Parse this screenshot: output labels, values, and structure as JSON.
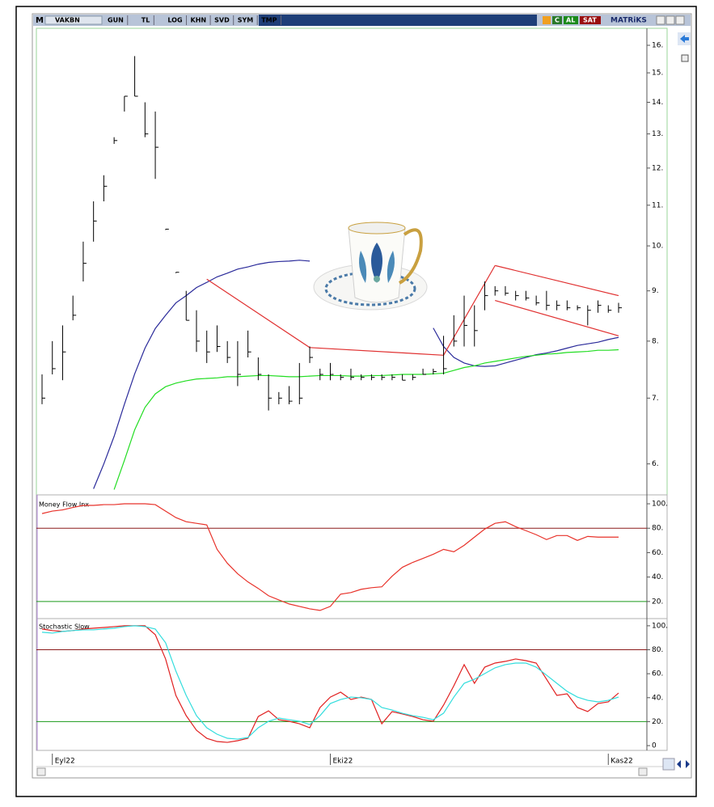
{
  "toolbar": {
    "logo": "M",
    "symbol": "VAKBN",
    "buttons": [
      "GUN",
      "TL",
      "LOG",
      "KHN",
      "SVD",
      "SYM",
      "TMP"
    ],
    "badges": [
      "C",
      "AL",
      "SAT"
    ],
    "brand": "MATRiKS"
  },
  "chart_data": [
    {
      "type": "ohlc",
      "log_scale": true,
      "bar_color": "#000000",
      "categories": [
        null,
        "Eyl22",
        null,
        null,
        null,
        null,
        null,
        null,
        null,
        null,
        null,
        null,
        null,
        null,
        null,
        null,
        null,
        null,
        null,
        null,
        null,
        null,
        null,
        null,
        null,
        null,
        null,
        null,
        "Eki22",
        null,
        null,
        null,
        null,
        null,
        null,
        null,
        null,
        null,
        null,
        null,
        null,
        null,
        null,
        null,
        null,
        null,
        null,
        null,
        null,
        null,
        null,
        null,
        null,
        null,
        null,
        "Kas22",
        null
      ],
      "high": [
        7.4,
        8.0,
        8.3,
        8.9,
        10.1,
        11.1,
        11.8,
        12.9,
        14.2,
        15.6,
        14.0,
        13.7,
        10.4,
        9.4,
        9.0,
        8.6,
        8.2,
        8.3,
        8.0,
        8.0,
        8.2,
        7.7,
        7.4,
        7.1,
        7.2,
        7.6,
        7.9,
        7.5,
        7.6,
        7.4,
        7.5,
        7.4,
        7.4,
        7.4,
        7.4,
        7.4,
        7.4,
        7.5,
        7.5,
        8.1,
        8.5,
        8.9,
        8.7,
        9.2,
        9.1,
        9.1,
        9.0,
        9.0,
        8.9,
        9.0,
        8.8,
        8.8,
        8.7,
        8.7,
        8.8,
        8.7,
        8.75
      ],
      "low": [
        6.9,
        7.4,
        7.3,
        8.4,
        9.2,
        10.1,
        11.1,
        12.7,
        13.7,
        14.2,
        12.9,
        11.7,
        10.4,
        9.4,
        8.4,
        7.8,
        7.6,
        7.8,
        7.6,
        7.2,
        7.7,
        7.3,
        6.8,
        6.9,
        6.9,
        6.9,
        7.6,
        7.3,
        7.3,
        7.3,
        7.3,
        7.3,
        7.3,
        7.3,
        7.3,
        7.3,
        7.3,
        7.4,
        7.4,
        7.4,
        7.9,
        7.9,
        7.9,
        8.6,
        8.9,
        8.9,
        8.8,
        8.8,
        8.7,
        8.6,
        8.6,
        8.6,
        8.6,
        8.3,
        8.55,
        8.55,
        8.55
      ],
      "close": [
        7.0,
        7.5,
        7.8,
        8.5,
        9.6,
        10.6,
        11.5,
        12.8,
        14.2,
        14.2,
        13.0,
        12.6,
        10.4,
        9.4,
        8.4,
        8.0,
        7.8,
        7.9,
        7.7,
        7.4,
        7.8,
        7.4,
        7.0,
        7.0,
        6.95,
        7.0,
        7.7,
        7.4,
        7.4,
        7.35,
        7.35,
        7.35,
        7.35,
        7.35,
        7.35,
        7.3,
        7.35,
        7.4,
        7.45,
        7.5,
        8.0,
        8.3,
        8.2,
        8.9,
        9.0,
        8.95,
        8.9,
        8.85,
        8.75,
        8.7,
        8.7,
        8.65,
        8.65,
        8.6,
        8.7,
        8.6,
        8.65
      ],
      "overlays": [
        {
          "color": "#2a2a9a",
          "values": [
            null,
            null,
            null,
            null,
            null,
            5.66,
            6.0,
            6.4,
            6.9,
            7.41,
            7.87,
            8.24,
            8.5,
            8.75,
            8.9,
            9.07,
            9.18,
            9.3,
            9.38,
            9.47,
            9.52,
            9.58,
            9.62,
            9.64,
            9.65,
            9.67,
            9.65,
            null,
            null,
            null,
            null,
            null,
            null,
            null,
            null,
            null,
            null,
            null,
            8.25,
            7.9,
            7.7,
            7.6,
            7.55,
            7.54,
            7.55,
            7.6,
            7.65,
            7.7,
            7.75,
            7.78,
            7.82,
            7.87,
            7.92,
            7.95,
            7.98,
            8.03,
            8.07
          ]
        },
        {
          "color": "#22dd22",
          "values": [
            null,
            null,
            null,
            null,
            null,
            null,
            null,
            5.65,
            6.05,
            6.5,
            6.85,
            7.07,
            7.19,
            7.25,
            7.29,
            7.32,
            7.33,
            7.34,
            7.36,
            7.36,
            7.37,
            7.38,
            7.38,
            7.37,
            7.36,
            7.36,
            7.37,
            7.38,
            7.38,
            7.38,
            7.37,
            7.37,
            7.38,
            7.38,
            7.39,
            7.4,
            7.4,
            7.4,
            7.41,
            7.42,
            7.47,
            7.52,
            7.55,
            7.6,
            7.63,
            7.66,
            7.69,
            7.72,
            7.74,
            7.76,
            7.77,
            7.79,
            7.8,
            7.81,
            7.83,
            7.83,
            7.84
          ]
        }
      ],
      "trendline_color": "#e03030",
      "trendlines": [
        {
          "x": [
            16,
            26
          ],
          "y": [
            9.25,
            7.88
          ]
        },
        {
          "x": [
            26,
            39
          ],
          "y": [
            7.88,
            7.74
          ]
        },
        {
          "x": [
            39,
            44
          ],
          "y": [
            7.74,
            9.55
          ]
        },
        {
          "x": [
            44,
            56
          ],
          "y": [
            9.55,
            8.9
          ]
        },
        {
          "x": [
            44,
            56
          ],
          "y": [
            8.8,
            8.1
          ]
        }
      ],
      "ylim": [
        5.58,
        16.65
      ],
      "yticks": [
        {
          "value": 16,
          "label": "16."
        },
        {
          "value": 15,
          "label": "15."
        },
        {
          "value": 14,
          "label": "14."
        },
        {
          "value": 13,
          "label": "13."
        },
        {
          "value": 12,
          "label": "12."
        },
        {
          "value": 11,
          "label": "11."
        },
        {
          "value": 10,
          "label": "10."
        },
        {
          "value": 9,
          "label": "9."
        },
        {
          "value": 8,
          "label": "8."
        },
        {
          "value": 7,
          "label": "7."
        },
        {
          "value": 6,
          "label": "6."
        }
      ]
    },
    {
      "type": "line",
      "title": "Money Flow Inx",
      "series": [
        {
          "color": "#e8322a",
          "values": [
            92,
            94,
            95,
            97,
            98.7,
            98.7,
            99.3,
            99.3,
            100,
            100,
            100,
            99.3,
            94,
            88.7,
            85.3,
            84,
            82.7,
            62.7,
            51.3,
            42.7,
            36,
            30.7,
            24.7,
            21.3,
            18,
            16,
            14,
            12.7,
            16,
            26,
            27.3,
            30,
            31.3,
            32,
            40.7,
            48,
            52,
            55.3,
            58.7,
            62.7,
            60.7,
            66,
            72.7,
            79.3,
            84,
            85.3,
            81.3,
            78,
            74.7,
            70.7,
            74,
            74,
            70,
            73.3,
            72.7,
            72.7,
            72.7
          ]
        }
      ],
      "hlines": [
        {
          "value": 80,
          "color": "#8b1a1a"
        },
        {
          "value": 20,
          "color": "#1a9a1a"
        }
      ],
      "ylim": [
        6,
        107.3
      ],
      "yticks": [
        {
          "value": 100,
          "label": "100."
        },
        {
          "value": 80,
          "label": "80."
        },
        {
          "value": 60,
          "label": "60."
        },
        {
          "value": 40,
          "label": "40."
        },
        {
          "value": 20,
          "label": "20."
        }
      ]
    },
    {
      "type": "line",
      "title": "Stochastic Slow",
      "series": [
        {
          "color": "#e02020",
          "values": [
            97.3,
            96,
            95.3,
            96,
            97.3,
            98,
            98.6,
            99.3,
            100,
            100,
            100,
            92.6,
            72.3,
            41.9,
            25,
            12.8,
            6.1,
            3.4,
            2.7,
            4.1,
            6.1,
            24.3,
            29,
            21.6,
            20.3,
            18.2,
            14.9,
            31.8,
            40.5,
            44.6,
            38.5,
            40.5,
            38.5,
            18.2,
            28.4,
            26.4,
            24.3,
            21.6,
            20.3,
            33.8,
            50,
            67.6,
            52,
            65.5,
            68.9,
            70.3,
            72.3,
            70.9,
            68.9,
            55.4,
            41.9,
            43.2,
            31.8,
            28.4,
            35.1,
            36.5,
            43.9
          ]
        },
        {
          "color": "#33dddd",
          "values": [
            94.6,
            93.9,
            95.3,
            96,
            96.6,
            96.6,
            97.3,
            98,
            99.3,
            100,
            99.3,
            97.3,
            85.8,
            62.2,
            41.9,
            25,
            14.9,
            9.5,
            6.1,
            5.4,
            6.8,
            14.9,
            20.3,
            23,
            21.6,
            20.3,
            17.6,
            25,
            35.1,
            38.5,
            40.5,
            39.9,
            38.5,
            31.8,
            29.7,
            27,
            25,
            23.6,
            21.6,
            27,
            40.5,
            52,
            55.4,
            60.1,
            64.9,
            67.6,
            68.9,
            68.9,
            65.5,
            58.8,
            52,
            45.3,
            40.5,
            37.8,
            36.5,
            37.8,
            40.5
          ]
        }
      ],
      "hlines": [
        {
          "value": 80,
          "color": "#8b1a1a"
        },
        {
          "value": 20,
          "color": "#1a9a1a"
        }
      ],
      "ylim": [
        -4,
        106
      ],
      "yticks": [
        {
          "value": 100,
          "label": "100."
        },
        {
          "value": 80,
          "label": "80."
        },
        {
          "value": 60,
          "label": "60."
        },
        {
          "value": 40,
          "label": "40."
        },
        {
          "value": 20,
          "label": "20."
        },
        0
      ]
    }
  ]
}
